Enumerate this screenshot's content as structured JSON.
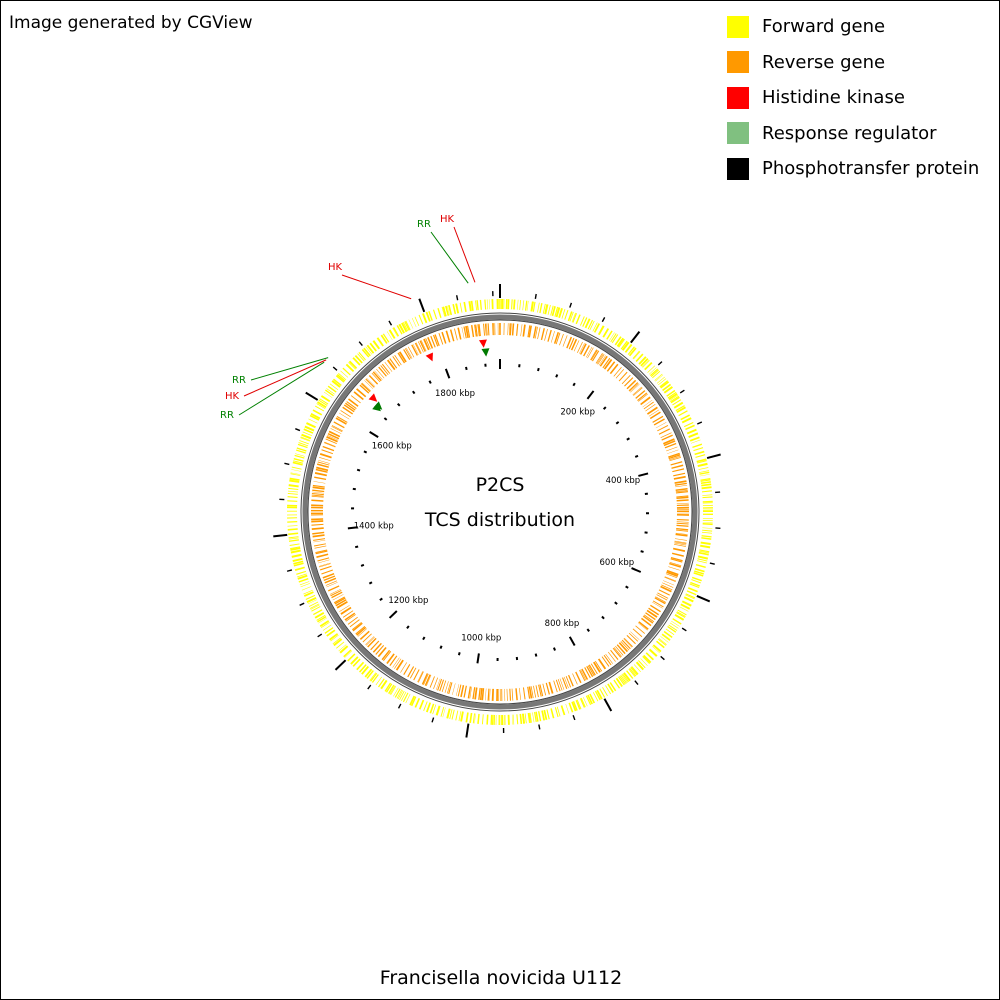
{
  "credit": "Image generated by CGView",
  "legend": [
    {
      "label": "Forward gene",
      "color": "#ffff00"
    },
    {
      "label": "Reverse gene",
      "color": "#ff9900"
    },
    {
      "label": "Histidine kinase",
      "color": "#ff0000"
    },
    {
      "label": "Response regulator",
      "color": "#80c080"
    },
    {
      "label": "Phosphotransfer protein",
      "color": "#000000"
    }
  ],
  "map": {
    "title_line1": "P2CS",
    "title_line2": "TCS distribution",
    "organism": "Francisella novicida U112",
    "scale_labels": [
      "200 kbp",
      "400 kbp",
      "600 kbp",
      "800 kbp",
      "1000 kbp",
      "1200 kbp",
      "1400 kbp",
      "1600 kbp",
      "1800 kbp"
    ],
    "genome_length_kbp": 1910,
    "colors": {
      "forward": "#ffff00",
      "reverse": "#ff9900",
      "backbone": "#777777",
      "hk": "#ff0000",
      "rr": "#007a00",
      "label_hk": "#e00000",
      "label_rr": "#008000"
    },
    "tcs_labels": [
      {
        "text": "RR",
        "type": "rr",
        "position_kbp": 1868
      },
      {
        "text": "HK",
        "type": "hk",
        "position_kbp": 1877
      },
      {
        "text": "HK",
        "type": "hk",
        "position_kbp": 1790
      },
      {
        "text": "RR",
        "type": "rr",
        "position_kbp": 1655
      },
      {
        "text": "HK",
        "type": "hk",
        "position_kbp": 1651
      },
      {
        "text": "RR",
        "type": "rr",
        "position_kbp": 1647
      }
    ],
    "tcs_markers": [
      {
        "type": "hk",
        "position_kbp": 1880
      },
      {
        "type": "rr",
        "position_kbp": 1883
      },
      {
        "type": "hk",
        "position_kbp": 1782
      },
      {
        "type": "hk",
        "position_kbp": 1655
      },
      {
        "type": "rr",
        "position_kbp": 1650
      },
      {
        "type": "rr",
        "position_kbp": 1646
      }
    ]
  }
}
